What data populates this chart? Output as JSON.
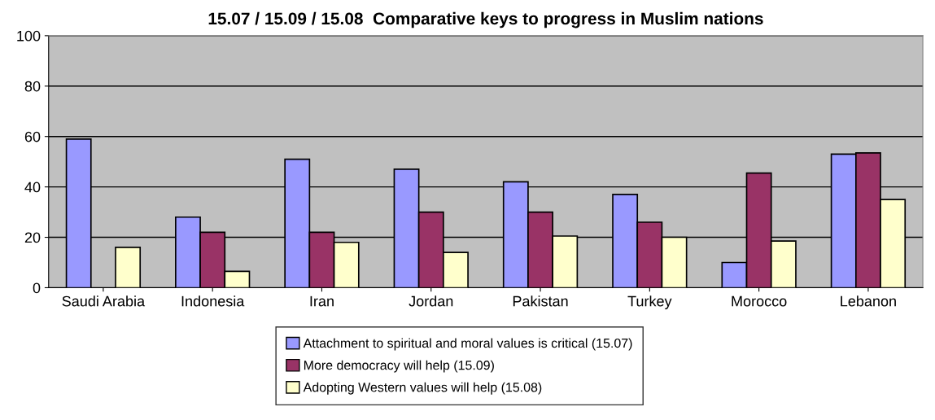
{
  "chart_data": {
    "type": "bar",
    "title": "15.07 / 15.09 / 15.08  Comparative keys to progress in Muslim nations",
    "categories": [
      "Saudi Arabia",
      "Indonesia",
      "Iran",
      "Jordan",
      "Pakistan",
      "Turkey",
      "Morocco",
      "Lebanon"
    ],
    "series": [
      {
        "name": "Attachment to spiritual and moral values is critical (15.07)",
        "color": "#9999ff",
        "values": [
          59,
          28,
          51,
          47,
          42,
          37,
          10,
          53
        ]
      },
      {
        "name": "More democracy will help (15.09)",
        "color": "#993366",
        "values": [
          null,
          22,
          22,
          30,
          30,
          26,
          45.5,
          53.5
        ]
      },
      {
        "name": "Adopting Western values will help (15.08)",
        "color": "#ffffcc",
        "values": [
          16,
          6.5,
          18,
          14,
          20.5,
          20,
          18.5,
          35
        ]
      }
    ],
    "ylim": [
      0,
      100
    ],
    "yticks": [
      0,
      20,
      40,
      60,
      80,
      100
    ],
    "grid": "y",
    "legend": "bottom"
  }
}
